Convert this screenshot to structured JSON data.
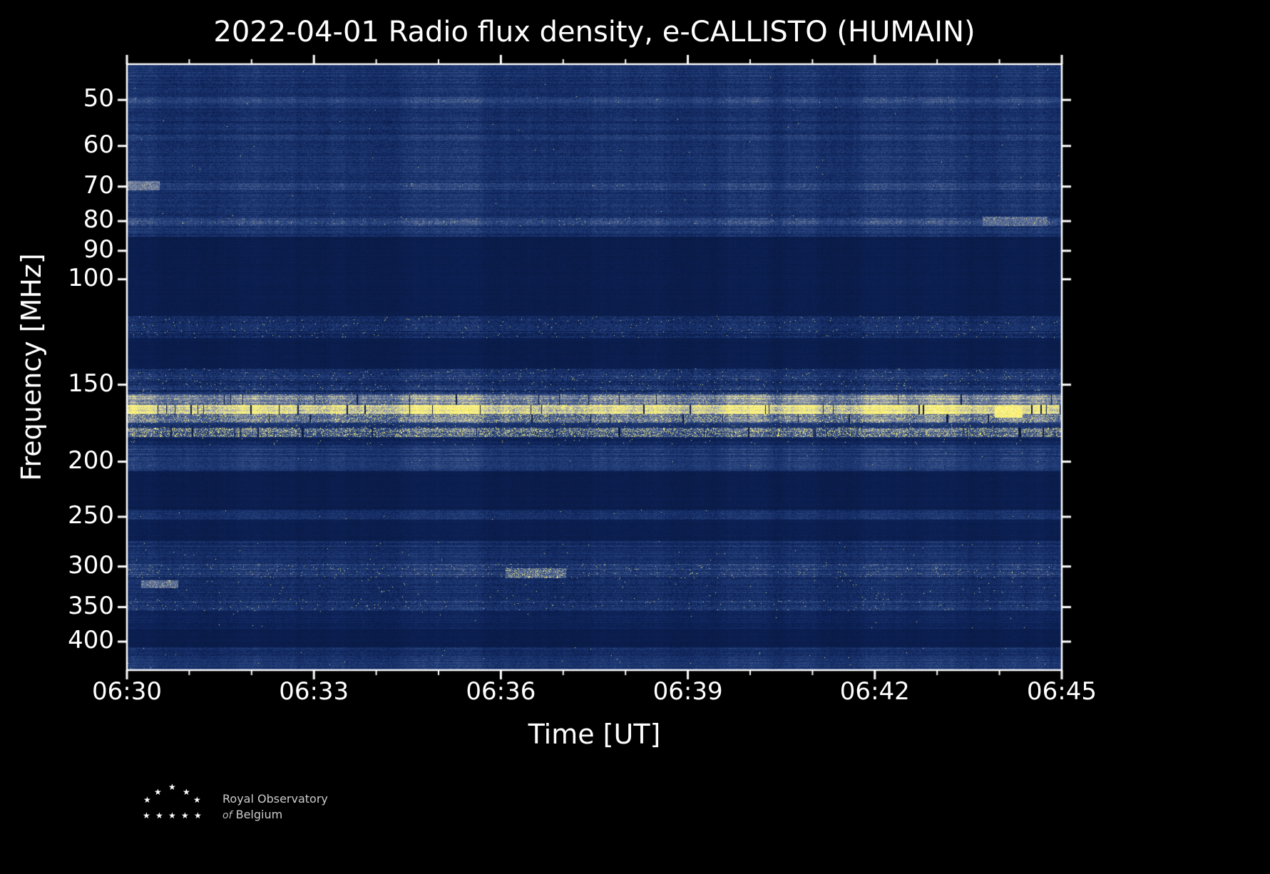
{
  "chart_data": {
    "type": "heatmap",
    "subtype": "radio-spectrogram",
    "title": "2022-04-01 Radio flux density, e-CALLISTO (HUMAIN)",
    "xlabel": "Time [UT]",
    "ylabel": "Frequency [MHz]",
    "x_range": [
      "06:30",
      "06:45"
    ],
    "x_major_tick_minutes": 3,
    "x_minor_tick_minutes": 1,
    "y_scale": "nonlinear instrument channels",
    "x_ticks": [
      {
        "label": "06:30",
        "f": 0.0
      },
      {
        "label": "06:33",
        "f": 0.2
      },
      {
        "label": "06:36",
        "f": 0.4
      },
      {
        "label": "06:39",
        "f": 0.6
      },
      {
        "label": "06:42",
        "f": 0.8
      },
      {
        "label": "06:45",
        "f": 1.0
      }
    ],
    "y_ticks": [
      {
        "label": "50",
        "f": 0.059
      },
      {
        "label": "60",
        "f": 0.135
      },
      {
        "label": "70",
        "f": 0.202
      },
      {
        "label": "80",
        "f": 0.259
      },
      {
        "label": "90",
        "f": 0.308
      },
      {
        "label": "100",
        "f": 0.355
      },
      {
        "label": "150",
        "f": 0.529
      },
      {
        "label": "200",
        "f": 0.656
      },
      {
        "label": "250",
        "f": 0.747
      },
      {
        "label": "300",
        "f": 0.829
      },
      {
        "label": "350",
        "f": 0.896
      },
      {
        "label": "400",
        "f": 0.953
      }
    ],
    "colormap": [
      [
        0.0,
        "#071538"
      ],
      [
        0.12,
        "#0d2258"
      ],
      [
        0.35,
        "#26437f"
      ],
      [
        0.55,
        "#6c7a9b"
      ],
      [
        0.7,
        "#aeb2ae"
      ],
      [
        0.82,
        "#e4dfa0"
      ],
      [
        0.9,
        "#f6ea5a"
      ],
      [
        1.0,
        "#fff9a0"
      ]
    ],
    "bands": [
      {
        "y0": 0.0,
        "y1": 0.285,
        "mean": 0.23,
        "noise": 0.2,
        "yprob": 0.0002,
        "rowvar": 0.35
      },
      {
        "y0": 0.285,
        "y1": 0.41,
        "mean": 0.08,
        "noise": 0.05,
        "yprob": 0.0,
        "rowvar": 0.15
      },
      {
        "y0": 0.415,
        "y1": 0.452,
        "mean": 0.21,
        "noise": 0.26,
        "yprob": 0.006,
        "rowvar": 0.4
      },
      {
        "y0": 0.452,
        "y1": 0.502,
        "mean": 0.08,
        "noise": 0.05,
        "yprob": 0.0,
        "rowvar": 0.15
      },
      {
        "y0": 0.502,
        "y1": 0.545,
        "mean": 0.23,
        "noise": 0.28,
        "yprob": 0.008,
        "rowvar": 0.45
      },
      {
        "y0": 0.545,
        "y1": 0.562,
        "mean": 0.56,
        "noise": 0.26,
        "yprob": 0.05,
        "rowvar": 0.25,
        "drop": 0.012
      },
      {
        "y0": 0.562,
        "y1": 0.578,
        "mean": 0.8,
        "noise": 0.18,
        "yprob": 0.3,
        "rowvar": 0.15,
        "drop": 0.025
      },
      {
        "y0": 0.578,
        "y1": 0.592,
        "mean": 0.46,
        "noise": 0.3,
        "yprob": 0.12,
        "rowvar": 0.3,
        "drop": 0.015
      },
      {
        "y0": 0.592,
        "y1": 0.6,
        "mean": 0.25,
        "noise": 0.2,
        "yprob": 0.01,
        "rowvar": 0.3
      },
      {
        "y0": 0.6,
        "y1": 0.615,
        "mean": 0.4,
        "noise": 0.3,
        "yprob": 0.18,
        "rowvar": 0.3,
        "drop": 0.012
      },
      {
        "y0": 0.615,
        "y1": 0.628,
        "mean": 0.15,
        "noise": 0.15,
        "yprob": 0.004,
        "rowvar": 0.3
      },
      {
        "y0": 0.628,
        "y1": 0.672,
        "mean": 0.27,
        "noise": 0.18,
        "yprob": 0.0005,
        "rowvar": 0.35
      },
      {
        "y0": 0.672,
        "y1": 0.735,
        "mean": 0.08,
        "noise": 0.05,
        "yprob": 0.0,
        "rowvar": 0.15
      },
      {
        "y0": 0.735,
        "y1": 0.752,
        "mean": 0.23,
        "noise": 0.2,
        "yprob": 0.001,
        "rowvar": 0.3
      },
      {
        "y0": 0.752,
        "y1": 0.787,
        "mean": 0.09,
        "noise": 0.06,
        "yprob": 0.0,
        "rowvar": 0.15
      },
      {
        "y0": 0.787,
        "y1": 0.825,
        "mean": 0.21,
        "noise": 0.18,
        "yprob": 0.001,
        "rowvar": 0.35
      },
      {
        "y0": 0.825,
        "y1": 0.848,
        "mean": 0.28,
        "noise": 0.25,
        "yprob": 0.01,
        "rowvar": 0.4
      },
      {
        "y0": 0.848,
        "y1": 0.882,
        "mean": 0.21,
        "noise": 0.2,
        "yprob": 0.002,
        "rowvar": 0.35
      },
      {
        "y0": 0.882,
        "y1": 0.902,
        "mean": 0.27,
        "noise": 0.25,
        "yprob": 0.006,
        "rowvar": 0.4
      },
      {
        "y0": 0.902,
        "y1": 0.932,
        "mean": 0.13,
        "noise": 0.1,
        "yprob": 0.0005,
        "rowvar": 0.3
      },
      {
        "y0": 0.932,
        "y1": 0.962,
        "mean": 0.08,
        "noise": 0.05,
        "yprob": 0.0,
        "rowvar": 0.15
      },
      {
        "y0": 0.962,
        "y1": 1.0,
        "mean": 0.23,
        "noise": 0.18,
        "yprob": 0.0008,
        "rowvar": 0.35
      }
    ],
    "lines": [
      {
        "y": 0.054,
        "h": 0.013,
        "mean": 0.33,
        "noise": 0.2,
        "yprob": 0.001
      },
      {
        "y": 0.116,
        "h": 0.008,
        "mean": 0.3,
        "noise": 0.2,
        "yprob": 0.0
      },
      {
        "y": 0.196,
        "h": 0.011,
        "mean": 0.33,
        "noise": 0.22,
        "yprob": 0.001
      },
      {
        "y": 0.254,
        "h": 0.013,
        "mean": 0.38,
        "noise": 0.25,
        "yprob": 0.004
      }
    ],
    "patches": [
      {
        "x0": 0.0,
        "x1": 0.035,
        "y": 0.193,
        "h": 0.015,
        "mean": 0.55,
        "yprob": 0.02
      },
      {
        "x0": 0.015,
        "x1": 0.055,
        "y": 0.852,
        "h": 0.013,
        "mean": 0.5,
        "yprob": 0.05
      },
      {
        "x0": 0.915,
        "x1": 0.985,
        "y": 0.252,
        "h": 0.015,
        "mean": 0.5,
        "yprob": 0.03
      },
      {
        "x0": 0.405,
        "x1": 0.47,
        "y": 0.832,
        "h": 0.016,
        "mean": 0.45,
        "yprob": 0.15
      },
      {
        "x0": 0.928,
        "x1": 0.958,
        "y": 0.563,
        "h": 0.02,
        "mean": 0.9,
        "yprob": 0.6
      }
    ]
  },
  "footer": {
    "org_line1": "Royal Observatory",
    "org_line2_prefix": "of",
    "org_line2": "Belgium"
  }
}
